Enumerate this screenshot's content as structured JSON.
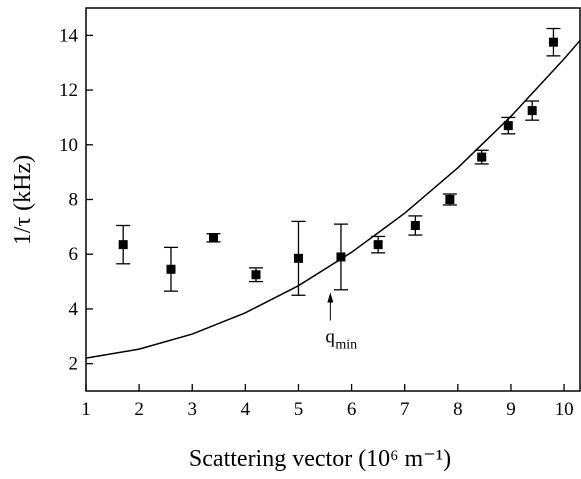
{
  "chart_data": {
    "type": "scatter",
    "x_label": "Scattering vector (10⁶ m⁻¹)",
    "y_label": "1/τ (kHz)",
    "xlim": [
      1,
      10.3
    ],
    "ylim": [
      1,
      15
    ],
    "xticks": [
      1,
      2,
      3,
      4,
      5,
      6,
      7,
      8,
      9,
      10
    ],
    "yticks": [
      2,
      4,
      6,
      8,
      10,
      12,
      14
    ],
    "color": "#000000",
    "points": {
      "x": [
        1.7,
        2.6,
        3.4,
        4.2,
        5.0,
        5.8,
        6.5,
        7.2,
        7.85,
        8.45,
        8.95,
        9.4,
        9.8
      ],
      "values": [
        6.35,
        5.45,
        6.6,
        5.25,
        5.85,
        5.9,
        6.35,
        7.05,
        8.0,
        9.55,
        10.7,
        11.25,
        13.75
      ],
      "errors": [
        0.7,
        0.8,
        0.15,
        0.25,
        1.35,
        1.2,
        0.3,
        0.35,
        0.2,
        0.25,
        0.3,
        0.35,
        0.5
      ]
    },
    "fit": {
      "x": [
        1,
        2,
        3,
        4,
        5,
        6,
        7,
        8,
        9,
        10,
        10.3
      ],
      "values": [
        2.2,
        2.53,
        3.08,
        3.86,
        4.85,
        6.07,
        7.5,
        9.16,
        11.04,
        13.14,
        13.81
      ]
    },
    "annotation": {
      "text": "q",
      "subscript": "min",
      "x": 5.6,
      "y": 4.6
    }
  }
}
